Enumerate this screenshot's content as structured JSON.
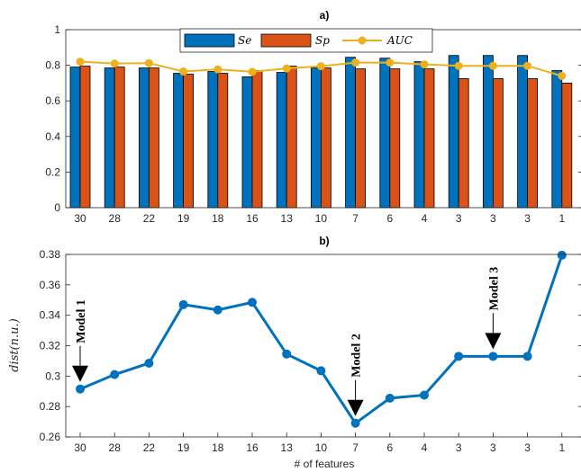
{
  "chart_data": [
    {
      "type": "bar",
      "title": "a)",
      "categories": [
        "30",
        "28",
        "22",
        "19",
        "18",
        "16",
        "13",
        "10",
        "7",
        "6",
        "4",
        "3",
        "3",
        "3",
        "1"
      ],
      "series": [
        {
          "name": "Se",
          "kind": "bar",
          "color": "#0072BD",
          "values": [
            0.79,
            0.785,
            0.785,
            0.755,
            0.765,
            0.735,
            0.76,
            0.785,
            0.845,
            0.84,
            0.82,
            0.855,
            0.855,
            0.855,
            0.77
          ]
        },
        {
          "name": "Sp",
          "kind": "bar",
          "color": "#D95319",
          "values": [
            0.795,
            0.79,
            0.785,
            0.75,
            0.755,
            0.77,
            0.795,
            0.785,
            0.78,
            0.78,
            0.78,
            0.725,
            0.725,
            0.725,
            0.7
          ]
        },
        {
          "name": "AUC",
          "kind": "line",
          "color": "#EDB120",
          "values": [
            0.82,
            0.81,
            0.812,
            0.765,
            0.777,
            0.763,
            0.782,
            0.795,
            0.815,
            0.815,
            0.805,
            0.797,
            0.797,
            0.797,
            0.74
          ]
        }
      ],
      "xlabel": "",
      "ylabel": "",
      "ylim": [
        0,
        1
      ],
      "yticks": [
        "0",
        "0.2",
        "0.4",
        "0.6",
        "0.8",
        "1"
      ],
      "grid": false,
      "legend": "top"
    },
    {
      "type": "line",
      "title": "b)",
      "categories": [
        "30",
        "28",
        "22",
        "19",
        "18",
        "16",
        "13",
        "10",
        "7",
        "6",
        "4",
        "3",
        "3",
        "3",
        "1"
      ],
      "series": [
        {
          "color": "#0072BD",
          "values": [
            0.2915,
            0.301,
            0.3085,
            0.347,
            0.3435,
            0.3485,
            0.3145,
            0.3035,
            0.269,
            0.2855,
            0.2875,
            0.313,
            0.313,
            0.313,
            0.3795
          ]
        }
      ],
      "xlabel": "# of features",
      "ylabel": "dist(n.u.)",
      "ylim": [
        0.26,
        0.38
      ],
      "yticks": [
        "0.26",
        "0.28",
        "0.3",
        "0.32",
        "0.34",
        "0.36",
        "0.38"
      ],
      "grid": false,
      "annotations": [
        {
          "text": "Model 1",
          "category_index": 0
        },
        {
          "text": "Model 2",
          "category_index": 8
        },
        {
          "text": "Model 3",
          "category_index": 12
        }
      ]
    }
  ]
}
